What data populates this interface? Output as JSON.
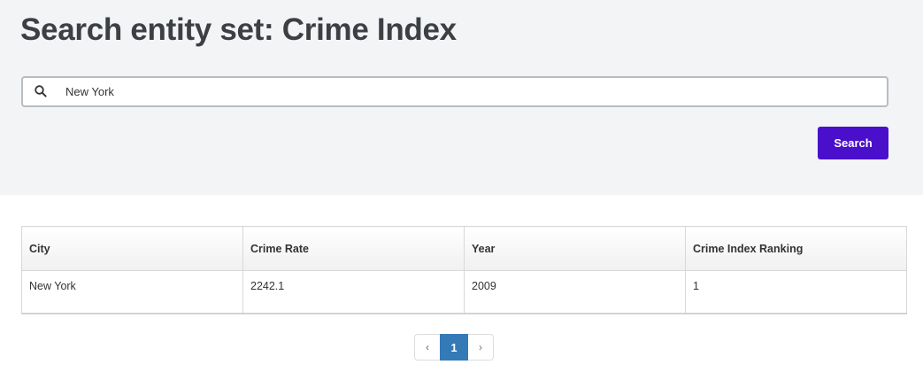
{
  "header": {
    "title": "Search entity set: Crime Index"
  },
  "search": {
    "value": "New York",
    "placeholder": "",
    "icon": "search-icon",
    "button_label": "Search",
    "button_color": "#4a0fcb"
  },
  "table": {
    "columns": [
      "City",
      "Crime Rate",
      "Year",
      "Crime Index Ranking"
    ],
    "rows": [
      [
        "New York",
        "2242.1",
        "2009",
        "1"
      ]
    ]
  },
  "pagination": {
    "prev_label": "‹",
    "current_page": "1",
    "next_label": "›",
    "active_color": "#337ab7"
  }
}
